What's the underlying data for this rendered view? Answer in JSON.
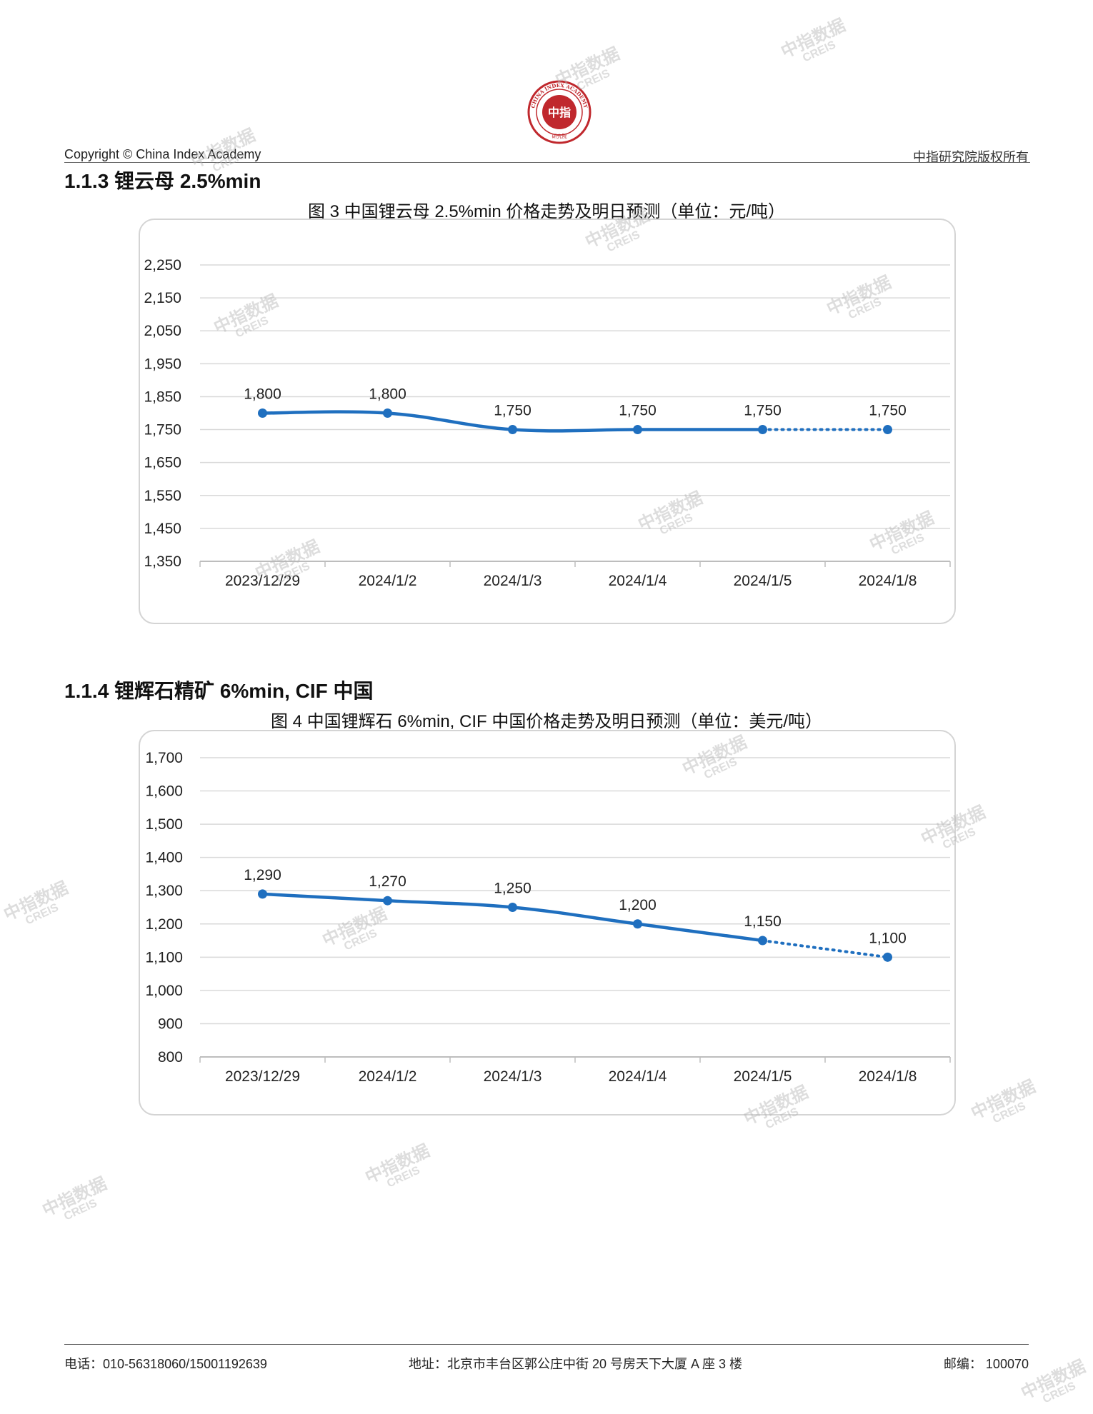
{
  "header": {
    "logo_text": "CHINA INDEX ACADEMY",
    "logo_center": "中指",
    "logo_bottom": "研究院",
    "copyright": "Copyright © China Index Academy",
    "rights": "中指研究院版权所有"
  },
  "sections": [
    {
      "heading": "1.1.3 锂云母 2.5%min",
      "chart_title": "图 3 中国锂云母 2.5%min 价格走势及明日预测（单位：元/吨）"
    },
    {
      "heading": "1.1.4 锂辉石精矿 6%min, CIF 中国",
      "chart_title": "图 4 中国锂辉石 6%min, CIF 中国价格走势及明日预测（单位：美元/吨）"
    }
  ],
  "chart_data": [
    {
      "type": "line",
      "title": "图 3 中国锂云母 2.5%min 价格走势及明日预测（单位：元/吨）",
      "categories": [
        "2023/12/29",
        "2024/1/2",
        "2024/1/3",
        "2024/1/4",
        "2024/1/5",
        "2024/1/8"
      ],
      "values": [
        1800,
        1800,
        1750,
        1750,
        1750,
        1750
      ],
      "data_labels": [
        "1,800",
        "1,800",
        "1,750",
        "1,750",
        "1,750",
        "1,750"
      ],
      "forecast_from_index": 4,
      "ylim": [
        1350,
        2250
      ],
      "yticks": [
        1350,
        1450,
        1550,
        1650,
        1750,
        1850,
        1950,
        2050,
        2150,
        2250
      ],
      "ytick_labels": [
        "1,350",
        "1,450",
        "1,550",
        "1,650",
        "1,750",
        "1,850",
        "1,950",
        "2,050",
        "2,150",
        "2,250"
      ],
      "grid": true,
      "color": "#1f6fbf"
    },
    {
      "type": "line",
      "title": "图 4 中国锂辉石 6%min, CIF 中国价格走势及明日预测（单位：美元/吨）",
      "categories": [
        "2023/12/29",
        "2024/1/2",
        "2024/1/3",
        "2024/1/4",
        "2024/1/5",
        "2024/1/8"
      ],
      "values": [
        1290,
        1270,
        1250,
        1200,
        1150,
        1100
      ],
      "data_labels": [
        "1,290",
        "1,270",
        "1,250",
        "1,200",
        "1,150",
        "1,100"
      ],
      "forecast_from_index": 4,
      "ylim": [
        800,
        1700
      ],
      "yticks": [
        800,
        900,
        1000,
        1100,
        1200,
        1300,
        1400,
        1500,
        1600,
        1700
      ],
      "ytick_labels": [
        "800",
        "900",
        "1,000",
        "1,100",
        "1,200",
        "1,300",
        "1,400",
        "1,500",
        "1,600",
        "1,700"
      ],
      "grid": true,
      "color": "#1f6fbf"
    }
  ],
  "watermark": {
    "cn": "中指数据",
    "en": "CREIS"
  },
  "footer": {
    "phone": "电话：010-56318060/15001192639",
    "address": "地址：北京市丰台区郭公庄中街 20 号房天下大厦 A 座 3 楼",
    "postcode": "邮编：  100070"
  }
}
